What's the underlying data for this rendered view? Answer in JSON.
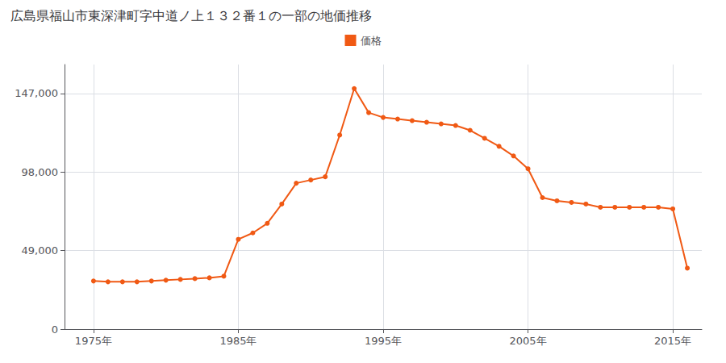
{
  "chart_data": {
    "type": "line",
    "title": "広島県福山市東深津町字中道ノ上１３２番１の一部の地価推移",
    "x": [
      1975,
      1976,
      1977,
      1978,
      1979,
      1980,
      1981,
      1982,
      1983,
      1984,
      1985,
      1986,
      1987,
      1988,
      1989,
      1990,
      1991,
      1992,
      1993,
      1994,
      1995,
      1996,
      1997,
      1998,
      1999,
      2000,
      2001,
      2002,
      2003,
      2004,
      2005,
      2006,
      2007,
      2008,
      2009,
      2010,
      2011,
      2012,
      2013,
      2014,
      2015,
      2016
    ],
    "series": [
      {
        "name": "価格",
        "color": "#f05914",
        "marker": "circle",
        "values": [
          30000,
          29500,
          29500,
          29500,
          30000,
          30500,
          31000,
          31500,
          32000,
          33000,
          56000,
          60000,
          66000,
          78000,
          91000,
          93000,
          95000,
          121000,
          150000,
          135000,
          132000,
          131000,
          130000,
          129000,
          128000,
          127000,
          124000,
          119000,
          114000,
          108000,
          100000,
          82000,
          80000,
          79000,
          78000,
          76000,
          76000,
          76000,
          76000,
          76000,
          75000,
          38000
        ]
      }
    ],
    "xlim": [
      1973,
      2017
    ],
    "xticks": [
      {
        "value": 1975,
        "label": "1975年"
      },
      {
        "value": 1985,
        "label": "1985年"
      },
      {
        "value": 1995,
        "label": "1995年"
      },
      {
        "value": 2005,
        "label": "2005年"
      },
      {
        "value": 2015,
        "label": "2015年"
      }
    ],
    "ylim": [
      0,
      165000
    ],
    "yticks": [
      0,
      {
        "value": 49000,
        "label": "49,000"
      },
      {
        "value": 98000,
        "label": "98,000"
      },
      {
        "value": 147000,
        "label": "147,000"
      }
    ],
    "grid": true,
    "legend": "top"
  }
}
